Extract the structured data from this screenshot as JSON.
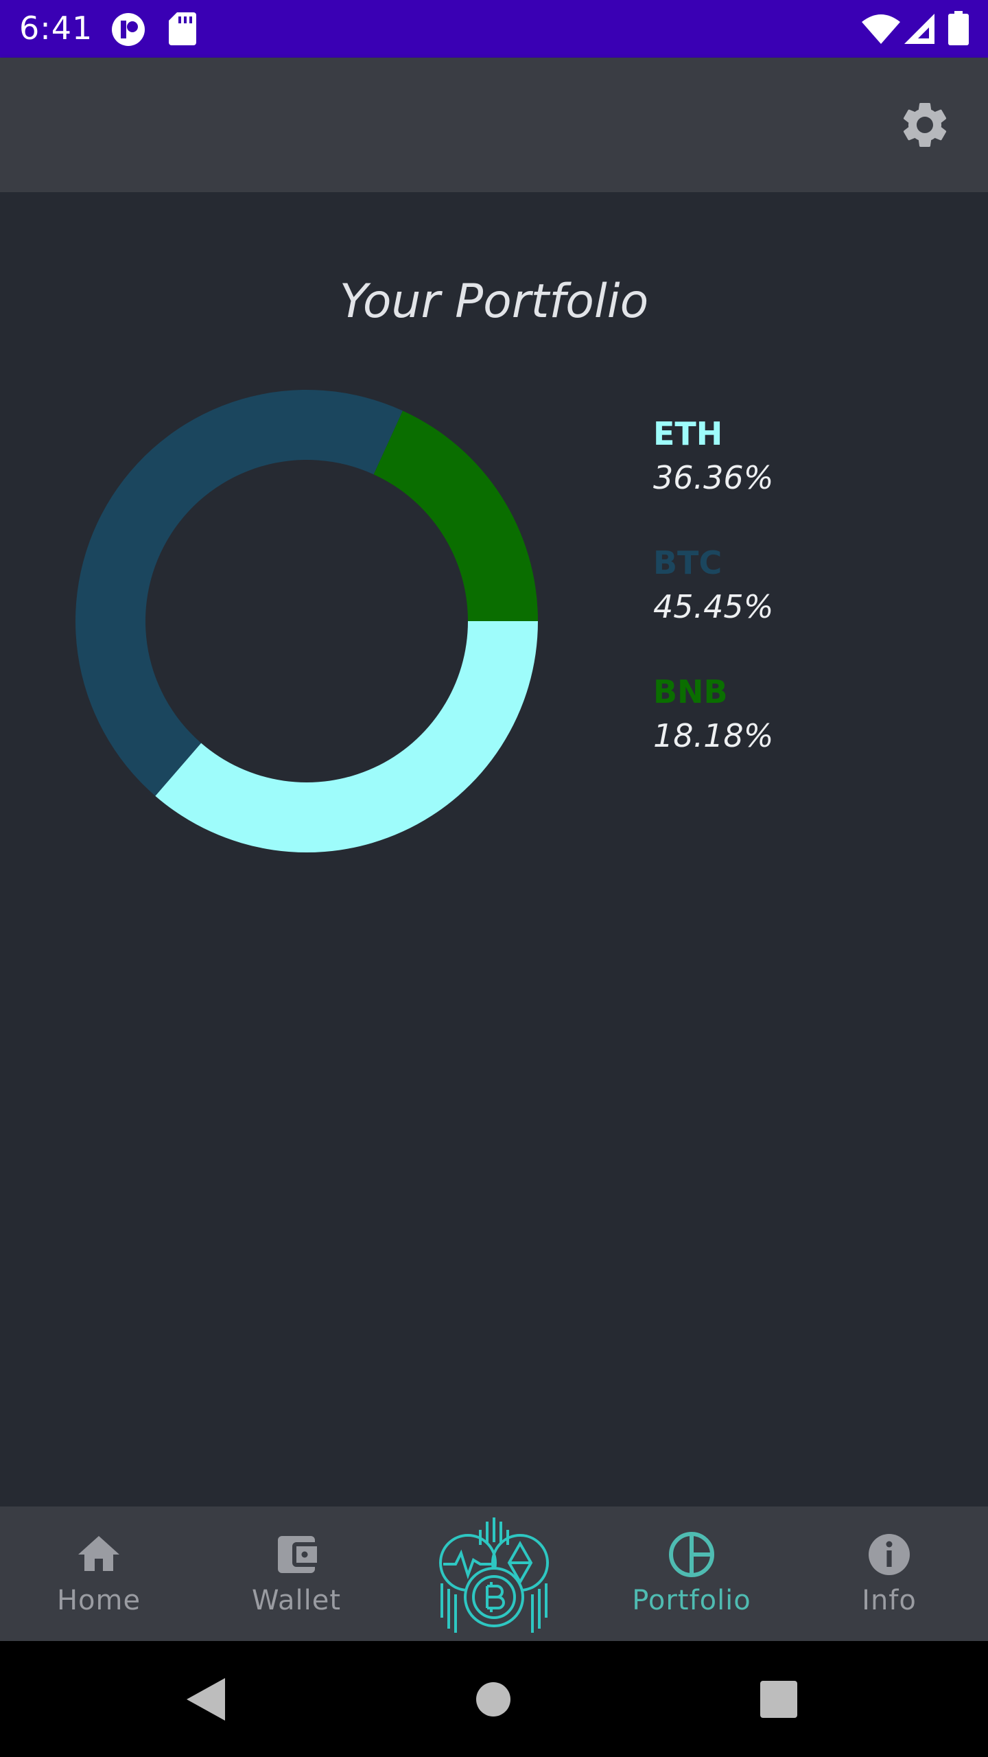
{
  "status_bar": {
    "time": "6:41",
    "icons": [
      "app-badge-icon",
      "sd-card-icon",
      "wifi-icon",
      "cell-signal-icon",
      "battery-icon"
    ]
  },
  "app_bar": {
    "settings_icon": "gear-icon"
  },
  "main": {
    "title": "Your Portfolio"
  },
  "chart_data": {
    "type": "pie",
    "donut": true,
    "categories": [
      "ETH",
      "BTC",
      "BNB"
    ],
    "values": [
      36.36,
      45.45,
      18.18
    ],
    "labels": [
      "36.36%",
      "45.45%",
      "18.18%"
    ],
    "colors": [
      "#9efcfb",
      "#1b465e",
      "#0a6e00"
    ],
    "legend_placement": "right"
  },
  "bottom_nav": {
    "items": [
      {
        "label": "Home",
        "icon": "home-icon",
        "active": false
      },
      {
        "label": "Wallet",
        "icon": "wallet-icon",
        "active": false
      },
      {
        "label": "Portfolio",
        "icon": "pie-chart-icon",
        "active": true
      },
      {
        "label": "Info",
        "icon": "info-icon",
        "active": false
      }
    ],
    "center_logo": "crypto-logo-icon",
    "active_color": "#4fbcb2",
    "inactive_color": "#9a9ca2"
  },
  "system_nav": {
    "icons": [
      "back-icon",
      "home-circle-icon",
      "recents-icon"
    ]
  }
}
